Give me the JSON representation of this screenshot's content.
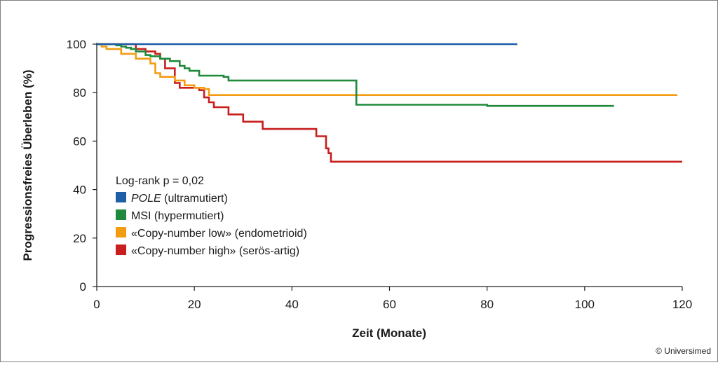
{
  "chart_data": {
    "type": "line",
    "step": true,
    "title": "",
    "xlabel": "Zeit (Monate)",
    "ylabel": "Progressionsfreies Überleben (%)",
    "xlim": [
      0,
      120
    ],
    "ylim": [
      0,
      100
    ],
    "xticks": [
      0,
      20,
      40,
      60,
      80,
      100,
      120
    ],
    "yticks": [
      0,
      20,
      40,
      60,
      80,
      100
    ],
    "grid": false,
    "legend_position": "bottom-left",
    "annotation": "Log-rank p = 0,02",
    "series": [
      {
        "name": "POLE",
        "name_suffix": " (ultramutiert)",
        "name_italic": true,
        "color": "#1f5fa8",
        "x": [
          0,
          86
        ],
        "y": [
          100,
          99.6
        ]
      },
      {
        "name": "MSI (hypermutiert)",
        "color": "#1f8a3b",
        "x": [
          0,
          4,
          5,
          6,
          7,
          8,
          10,
          11,
          13,
          15,
          17,
          18,
          19,
          21,
          26,
          27,
          53,
          53.2,
          80,
          106
        ],
        "y": [
          100,
          99.5,
          99,
          98.5,
          98,
          97,
          95.5,
          95,
          94,
          93,
          91,
          90,
          89,
          87,
          86.5,
          85,
          85,
          75,
          74.5,
          74.5
        ]
      },
      {
        "name": "«Copy-number low» (endometrioid)",
        "color": "#f39c12",
        "x": [
          0,
          1,
          2,
          5,
          8,
          11,
          12,
          13,
          16,
          18,
          20,
          22,
          23,
          119
        ],
        "y": [
          100,
          99,
          98,
          96,
          94,
          92,
          88,
          86.5,
          85,
          83,
          82,
          81.5,
          79,
          79
        ]
      },
      {
        "name": "«Copy-number high» (serös-artig)",
        "color": "#c81e1e",
        "x": [
          0,
          8,
          10,
          12,
          13,
          14,
          16,
          17,
          21,
          22,
          23,
          24,
          27,
          30,
          34,
          45,
          47,
          47.5,
          48,
          120
        ],
        "y": [
          100,
          98,
          97,
          96,
          94,
          90,
          84,
          82,
          81,
          78,
          76,
          74,
          71,
          68,
          65,
          62,
          57,
          55,
          51.5,
          51.5
        ]
      }
    ]
  },
  "credit": "© Universimed"
}
